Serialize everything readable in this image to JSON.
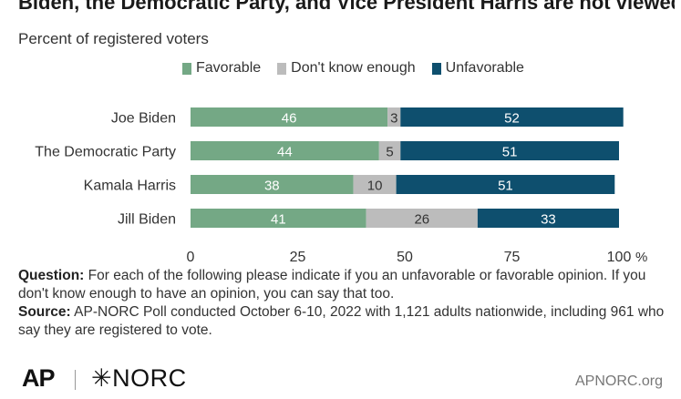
{
  "header": {
    "title": "Biden, the Democratic Party, and Vice President Harris are not viewed favorably by most people",
    "subtitle": "Percent of registered voters"
  },
  "colors": {
    "favorable": "#74a885",
    "dont_know": "#bcbcbc",
    "unfavorable": "#0e4f6e"
  },
  "notes": {
    "question_label": "Question:",
    "question_text": " For each of the following please indicate if you an unfavorable or favorable opinion.  If you don't know enough to have an opinion, you can say that too.",
    "source_label": "Source:",
    "source_text": " AP-NORC Poll conducted October 6-10, 2022 with 1,121 adults nationwide, including 961 who say they are registered to vote."
  },
  "footer": {
    "logo_ap": "AP",
    "logo_norc": "✳NORC",
    "site": "APNORC.org"
  },
  "chart_data": {
    "type": "bar",
    "orientation": "horizontal",
    "stacked": true,
    "categories": [
      "Joe Biden",
      "The Democratic Party",
      "Kamala Harris",
      "Jill Biden"
    ],
    "series": [
      {
        "name": "Favorable",
        "values": [
          46,
          44,
          38,
          41
        ]
      },
      {
        "name": "Don't know enough",
        "values": [
          3,
          5,
          10,
          26
        ]
      },
      {
        "name": "Unfavorable",
        "values": [
          52,
          51,
          51,
          33
        ]
      }
    ],
    "xlim": [
      0,
      100
    ],
    "xticks": [
      0,
      25,
      50,
      75,
      100
    ],
    "xtick_labels": [
      "0",
      "25",
      "50",
      "75",
      "100"
    ],
    "x_unit": "%",
    "grid": false,
    "legend_position": "top"
  }
}
